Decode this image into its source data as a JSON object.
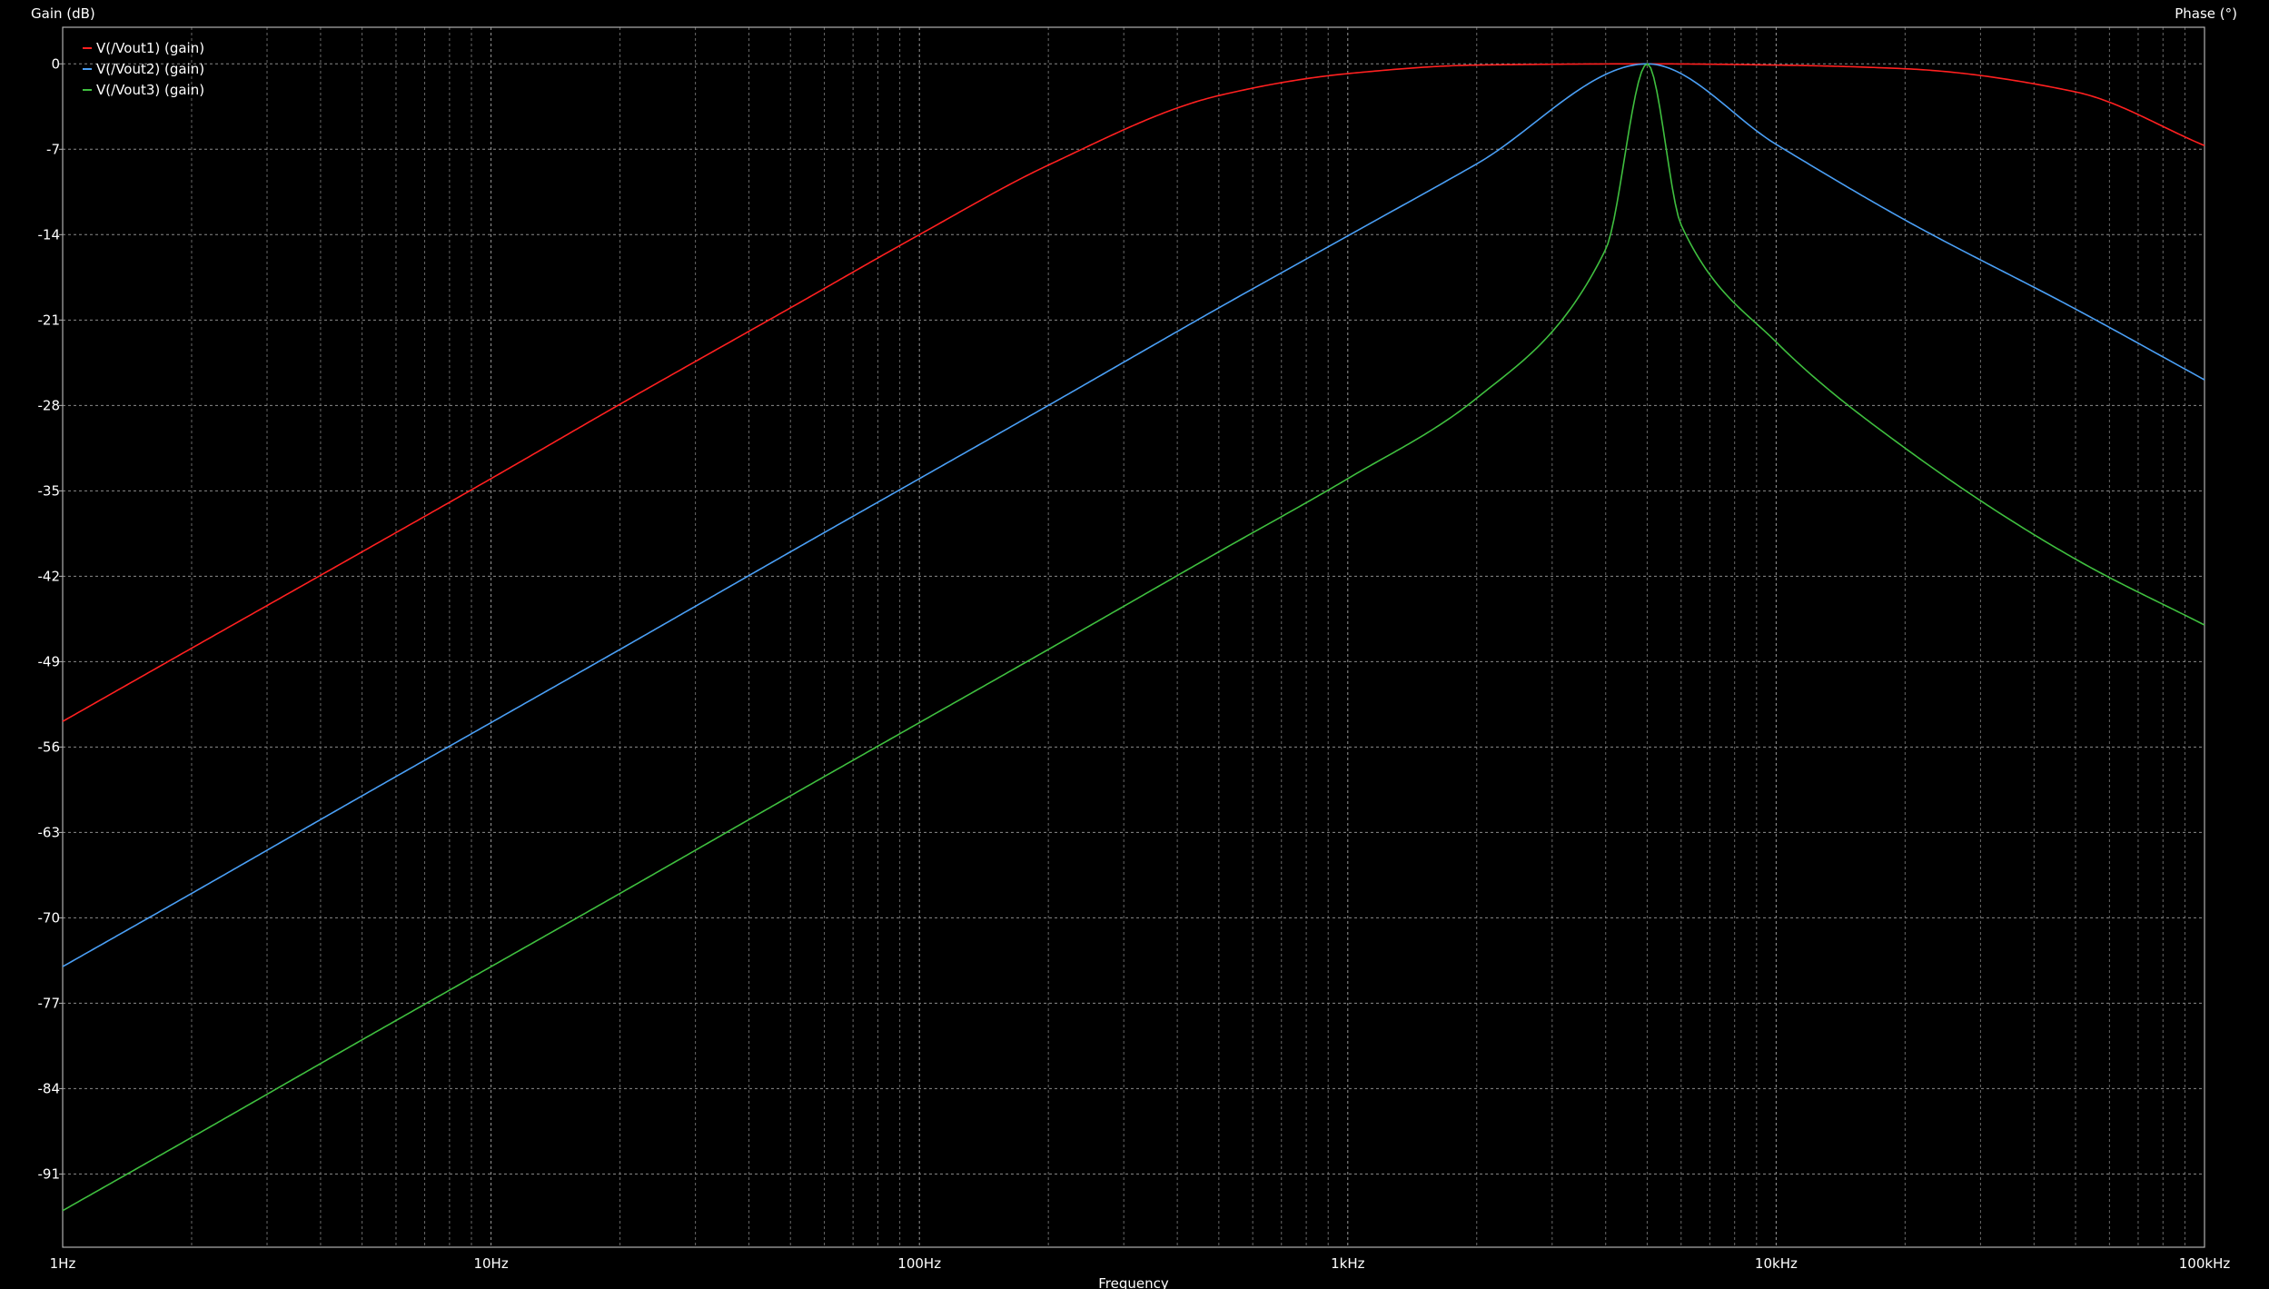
{
  "chart_data": {
    "type": "line",
    "y_axis_title": "Gain (dB)",
    "y2_axis_title": "Phase (°)",
    "x_axis_title": "Frequency",
    "x_scale": "log",
    "x_range_hz": [
      1,
      100000
    ],
    "y_range_db": [
      -97,
      3
    ],
    "x_ticks": [
      {
        "value": 1,
        "label": "1Hz"
      },
      {
        "value": 10,
        "label": "10Hz"
      },
      {
        "value": 100,
        "label": "100Hz"
      },
      {
        "value": 1000,
        "label": "1kHz"
      },
      {
        "value": 10000,
        "label": "10kHz"
      },
      {
        "value": 100000,
        "label": "100kHz"
      }
    ],
    "y_ticks": [
      {
        "value": 0,
        "label": "0"
      },
      {
        "value": -7,
        "label": "-7"
      },
      {
        "value": -14,
        "label": "-14"
      },
      {
        "value": -21,
        "label": "-21"
      },
      {
        "value": -28,
        "label": "-28"
      },
      {
        "value": -35,
        "label": "-35"
      },
      {
        "value": -42,
        "label": "-42"
      },
      {
        "value": -49,
        "label": "-49"
      },
      {
        "value": -56,
        "label": "-56"
      },
      {
        "value": -63,
        "label": "-63"
      },
      {
        "value": -70,
        "label": "-70"
      },
      {
        "value": -77,
        "label": "-77"
      },
      {
        "value": -84,
        "label": "-84"
      },
      {
        "value": -91,
        "label": "-91"
      }
    ],
    "grid": true,
    "legend_position": "top-left",
    "series": [
      {
        "name": "V(/Vout1) (gain)",
        "color": "#ff2020",
        "x": [
          1,
          2,
          5,
          10,
          20,
          50,
          100,
          200,
          500,
          1000,
          2000,
          5000,
          10000,
          20000,
          50000,
          100000
        ],
        "y": [
          -53.9,
          -47.9,
          -40.0,
          -34.0,
          -27.9,
          -20.0,
          -14.0,
          -8.3,
          -2.6,
          -0.8,
          -0.1,
          0.0,
          -0.1,
          -0.4,
          -2.3,
          -6.7
        ]
      },
      {
        "name": "V(/Vout2) (gain)",
        "color": "#4a9ff5",
        "x": [
          1,
          2,
          5,
          10,
          20,
          50,
          100,
          200,
          500,
          1000,
          2000,
          5000,
          10000,
          20000,
          50000,
          100000
        ],
        "y": [
          -74.0,
          -68.0,
          -60.0,
          -54.0,
          -48.0,
          -40.0,
          -34.0,
          -28.0,
          -20.0,
          -14.1,
          -8.2,
          0.0,
          -6.6,
          -12.8,
          -20.1,
          -25.9
        ]
      },
      {
        "name": "V(/Vout3) (gain)",
        "color": "#3fbf3f",
        "x": [
          1,
          2,
          5,
          10,
          20,
          50,
          100,
          200,
          500,
          1000,
          2000,
          4000,
          5000,
          6000,
          10000,
          20000,
          50000,
          100000
        ],
        "y": [
          -94.0,
          -88.0,
          -80.0,
          -74.0,
          -68.0,
          -60.0,
          -54.0,
          -48.0,
          -40.0,
          -34.0,
          -27.4,
          -15.2,
          0.0,
          -13.2,
          -22.8,
          -31.5,
          -40.6,
          -46.0
        ]
      }
    ]
  }
}
